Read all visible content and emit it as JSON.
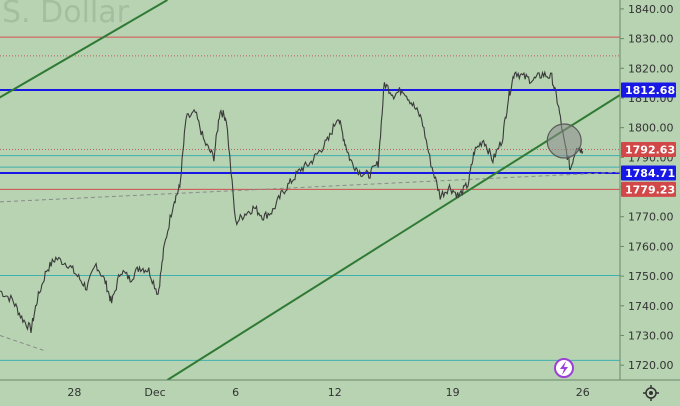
{
  "chart_data": {
    "type": "candlestick",
    "title": "S. Dollar",
    "ylim": [
      1715,
      1843
    ],
    "yticks": [
      "1840.00",
      "1830.00",
      "1820.00",
      "1810.00",
      "1800.00",
      "1790.00",
      "1780.00",
      "1770.00",
      "1760.00",
      "1750.00",
      "1740.00",
      "1730.00",
      "1720.00"
    ],
    "xticks": [
      {
        "label": "28",
        "pos": 0.12
      },
      {
        "label": "Dec",
        "pos": 0.25
      },
      {
        "label": "6",
        "pos": 0.38
      },
      {
        "label": "12",
        "pos": 0.54
      },
      {
        "label": "19",
        "pos": 0.73
      },
      {
        "label": "26",
        "pos": 0.94
      }
    ],
    "price_labels": [
      {
        "value": 1812.68,
        "text": "1812.68",
        "color": "#1717e6"
      },
      {
        "value": 1792.63,
        "text": "1792.63",
        "color": "#d24848"
      },
      {
        "value": 1784.71,
        "text": "1784.71",
        "color": "#1717e6"
      },
      {
        "value": 1779.23,
        "text": "1779.23",
        "color": "#d24848"
      }
    ],
    "series": [
      {
        "t": 0.0,
        "v": 1745
      },
      {
        "t": 0.02,
        "v": 1742
      },
      {
        "t": 0.035,
        "v": 1736
      },
      {
        "t": 0.05,
        "v": 1732
      },
      {
        "t": 0.06,
        "v": 1742
      },
      {
        "t": 0.075,
        "v": 1752
      },
      {
        "t": 0.09,
        "v": 1756
      },
      {
        "t": 0.11,
        "v": 1754
      },
      {
        "t": 0.125,
        "v": 1750
      },
      {
        "t": 0.14,
        "v": 1746
      },
      {
        "t": 0.155,
        "v": 1754
      },
      {
        "t": 0.17,
        "v": 1748
      },
      {
        "t": 0.18,
        "v": 1741
      },
      {
        "t": 0.195,
        "v": 1752
      },
      {
        "t": 0.21,
        "v": 1749
      },
      {
        "t": 0.225,
        "v": 1753
      },
      {
        "t": 0.24,
        "v": 1752
      },
      {
        "t": 0.255,
        "v": 1744
      },
      {
        "t": 0.265,
        "v": 1760
      },
      {
        "t": 0.28,
        "v": 1775
      },
      {
        "t": 0.29,
        "v": 1780
      },
      {
        "t": 0.3,
        "v": 1803
      },
      {
        "t": 0.315,
        "v": 1805
      },
      {
        "t": 0.33,
        "v": 1795
      },
      {
        "t": 0.345,
        "v": 1790
      },
      {
        "t": 0.355,
        "v": 1806
      },
      {
        "t": 0.365,
        "v": 1803
      },
      {
        "t": 0.38,
        "v": 1768
      },
      {
        "t": 0.395,
        "v": 1771
      },
      {
        "t": 0.41,
        "v": 1773
      },
      {
        "t": 0.425,
        "v": 1770
      },
      {
        "t": 0.44,
        "v": 1772
      },
      {
        "t": 0.455,
        "v": 1778
      },
      {
        "t": 0.47,
        "v": 1782
      },
      {
        "t": 0.485,
        "v": 1786
      },
      {
        "t": 0.5,
        "v": 1788
      },
      {
        "t": 0.515,
        "v": 1792
      },
      {
        "t": 0.53,
        "v": 1796
      },
      {
        "t": 0.545,
        "v": 1804
      },
      {
        "t": 0.555,
        "v": 1796
      },
      {
        "t": 0.565,
        "v": 1789
      },
      {
        "t": 0.58,
        "v": 1785
      },
      {
        "t": 0.595,
        "v": 1784
      },
      {
        "t": 0.61,
        "v": 1788
      },
      {
        "t": 0.62,
        "v": 1815
      },
      {
        "t": 0.635,
        "v": 1811
      },
      {
        "t": 0.65,
        "v": 1813
      },
      {
        "t": 0.665,
        "v": 1808
      },
      {
        "t": 0.68,
        "v": 1803
      },
      {
        "t": 0.695,
        "v": 1788
      },
      {
        "t": 0.71,
        "v": 1777
      },
      {
        "t": 0.725,
        "v": 1780
      },
      {
        "t": 0.74,
        "v": 1777
      },
      {
        "t": 0.755,
        "v": 1781
      },
      {
        "t": 0.765,
        "v": 1792
      },
      {
        "t": 0.78,
        "v": 1796
      },
      {
        "t": 0.795,
        "v": 1789
      },
      {
        "t": 0.81,
        "v": 1796
      },
      {
        "t": 0.82,
        "v": 1810
      },
      {
        "t": 0.83,
        "v": 1819
      },
      {
        "t": 0.845,
        "v": 1817
      },
      {
        "t": 0.86,
        "v": 1816
      },
      {
        "t": 0.875,
        "v": 1818
      },
      {
        "t": 0.89,
        "v": 1817
      },
      {
        "t": 0.9,
        "v": 1808
      },
      {
        "t": 0.91,
        "v": 1795
      },
      {
        "t": 0.92,
        "v": 1786
      },
      {
        "t": 0.93,
        "v": 1794
      },
      {
        "t": 0.94,
        "v": 1792
      }
    ],
    "h_lines": [
      {
        "value": 1830.5,
        "color": "#d25050",
        "style": "solid"
      },
      {
        "value": 1824.2,
        "color": "#c06060",
        "style": "dotted"
      },
      {
        "value": 1812.68,
        "color": "#1717e6",
        "style": "solid",
        "width": 2
      },
      {
        "value": 1792.63,
        "color": "#c06060",
        "style": "dotted"
      },
      {
        "value": 1790.6,
        "color": "#3fb0b0",
        "style": "solid"
      },
      {
        "value": 1786.7,
        "color": "#3fb0b0",
        "style": "solid"
      },
      {
        "value": 1784.71,
        "color": "#1717e6",
        "style": "solid",
        "width": 2
      },
      {
        "value": 1779.23,
        "color": "#d25050",
        "style": "solid"
      },
      {
        "value": 1750.2,
        "color": "#3fb0b0",
        "style": "solid"
      },
      {
        "value": 1721.6,
        "color": "#3fb0b0",
        "style": "solid"
      }
    ],
    "trend_lines": [
      {
        "t1": -0.01,
        "v1": 1809,
        "t2": 0.27,
        "v2": 1843,
        "color": "#2f7a34",
        "width": 2
      },
      {
        "t1": 0.27,
        "v1": 1715,
        "t2": 1.0,
        "v2": 1811,
        "color": "#2f7a34",
        "width": 2
      },
      {
        "t1": 0.0,
        "v1": 1775,
        "t2": 1.0,
        "v2": 1785,
        "color": "#8a8a8a",
        "width": 1,
        "dash": "4,3"
      },
      {
        "t1": 0.0,
        "v1": 1730,
        "t2": 0.07,
        "v2": 1725,
        "color": "#8a8a8a",
        "width": 1,
        "dash": "4,3"
      }
    ],
    "marker_circle": {
      "t": 0.91,
      "v": 1795.5
    }
  }
}
